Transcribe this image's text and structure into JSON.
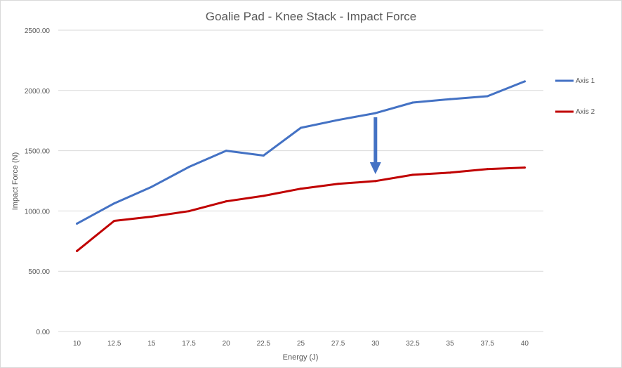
{
  "chart_data": {
    "type": "line",
    "title": "Goalie Pad - Knee Stack - Impact Force",
    "xlabel": "Energy (J)",
    "ylabel": "Impact Force (N)",
    "categories": [
      "10",
      "12.5",
      "15",
      "17.5",
      "20",
      "22.5",
      "25",
      "27.5",
      "30",
      "32.5",
      "35",
      "37.5",
      "40"
    ],
    "ylim": [
      0,
      2500
    ],
    "yticks": [
      "0.00",
      "500.00",
      "1000.00",
      "1500.00",
      "2000.00",
      "2500.00"
    ],
    "grid": true,
    "legend_position": "right",
    "series": [
      {
        "name": "Axis 1",
        "color": "#4472c4",
        "values": [
          895,
          1063,
          1200,
          1365,
          1500,
          1460,
          1690,
          1755,
          1812,
          1900,
          1928,
          1952,
          2075
        ]
      },
      {
        "name": "Axis 2",
        "color": "#c00000",
        "values": [
          668,
          918,
          953,
          998,
          1080,
          1125,
          1185,
          1225,
          1248,
          1300,
          1318,
          1348,
          1360
        ]
      }
    ],
    "annotations": [
      {
        "type": "down-arrow",
        "x": "30",
        "color": "#4472c4"
      }
    ]
  }
}
